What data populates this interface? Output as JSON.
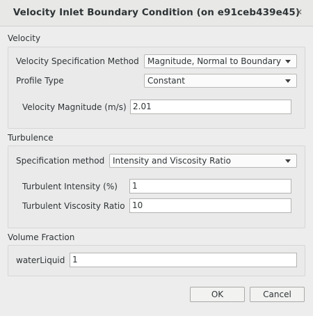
{
  "window": {
    "title": "Velocity Inlet Boundary Condition (on e91ceb439e45)",
    "close_glyph": "×"
  },
  "velocity": {
    "section_label": "Velocity",
    "spec_method_label": "Velocity Specification Method",
    "spec_method_value": "Magnitude, Normal to Boundary",
    "profile_type_label": "Profile Type",
    "profile_type_value": "Constant",
    "magnitude_label": "Velocity Magnitude (m/s)",
    "magnitude_value": "2.01"
  },
  "turbulence": {
    "section_label": "Turbulence",
    "spec_method_label": "Specification method",
    "spec_method_value": "Intensity and Viscosity Ratio",
    "intensity_label": "Turbulent Intensity (%)",
    "intensity_value": "1",
    "viscosity_ratio_label": "Turbulent Viscosity Ratio",
    "viscosity_ratio_value": "10"
  },
  "volume_fraction": {
    "section_label": "Volume Fraction",
    "water_label": "waterLiquid",
    "water_value": "1"
  },
  "buttons": {
    "ok_label": "OK",
    "cancel_label": "Cancel"
  }
}
